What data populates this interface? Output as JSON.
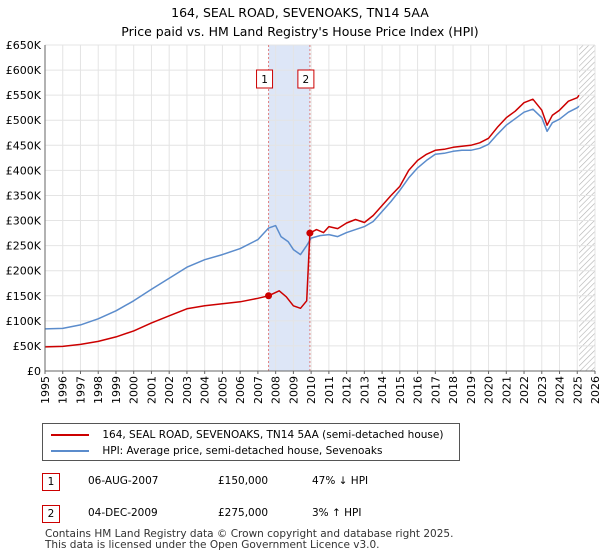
{
  "header": {
    "title": "164, SEAL ROAD, SEVENOAKS, TN14 5AA",
    "subtitle": "Price paid vs. HM Land Registry's House Price Index (HPI)"
  },
  "chart_data": {
    "type": "line",
    "title": "164, SEAL ROAD, SEVENOAKS, TN14 5AA",
    "subtitle": "Price paid vs. HM Land Registry's House Price Index (HPI)",
    "xlabel": "",
    "ylabel": "",
    "xlim": [
      1995,
      2026
    ],
    "ylim": [
      0,
      650000
    ],
    "grid": true,
    "x_ticks": [
      "1995",
      "1996",
      "1997",
      "1998",
      "1999",
      "2000",
      "2001",
      "2002",
      "2003",
      "2004",
      "2005",
      "2006",
      "2007",
      "2008",
      "2009",
      "2010",
      "2011",
      "2012",
      "2013",
      "2014",
      "2015",
      "2016",
      "2017",
      "2018",
      "2019",
      "2020",
      "2021",
      "2022",
      "2023",
      "2024",
      "2025",
      "2026"
    ],
    "y_ticks": [
      {
        "value": 0,
        "label": "£0"
      },
      {
        "value": 50000,
        "label": "£50K"
      },
      {
        "value": 100000,
        "label": "£100K"
      },
      {
        "value": 150000,
        "label": "£150K"
      },
      {
        "value": 200000,
        "label": "£200K"
      },
      {
        "value": 250000,
        "label": "£250K"
      },
      {
        "value": 300000,
        "label": "£300K"
      },
      {
        "value": 350000,
        "label": "£350K"
      },
      {
        "value": 400000,
        "label": "£400K"
      },
      {
        "value": 450000,
        "label": "£450K"
      },
      {
        "value": 500000,
        "label": "£500K"
      },
      {
        "value": 550000,
        "label": "£550K"
      },
      {
        "value": 600000,
        "label": "£600K"
      },
      {
        "value": 650000,
        "label": "£650K"
      }
    ],
    "series": [
      {
        "name": "164, SEAL ROAD, SEVENOAKS, TN14 5AA (semi-detached house)",
        "color": "#cc0000",
        "x": [
          1995.0,
          1996.0,
          1997.0,
          1998.0,
          1999.0,
          2000.0,
          2001.0,
          2002.0,
          2003.0,
          2004.0,
          2005.0,
          2006.0,
          2007.0,
          2007.6,
          2008.2,
          2008.6,
          2009.0,
          2009.4,
          2009.75,
          2009.93,
          2010.3,
          2010.7,
          2011.0,
          2011.5,
          2012.0,
          2012.5,
          2013.0,
          2013.5,
          2014.0,
          2014.5,
          2015.0,
          2015.5,
          2016.0,
          2016.5,
          2017.0,
          2017.5,
          2018.0,
          2018.5,
          2019.0,
          2019.5,
          2020.0,
          2020.5,
          2021.0,
          2021.5,
          2022.0,
          2022.5,
          2023.0,
          2023.3,
          2023.6,
          2024.0,
          2024.5,
          2025.0,
          2025.1
        ],
        "y": [
          48000,
          49000,
          53000,
          59000,
          68000,
          80000,
          96000,
          110000,
          124000,
          130000,
          134000,
          138000,
          145000,
          150000,
          160000,
          148000,
          130000,
          125000,
          140000,
          275000,
          282000,
          276000,
          288000,
          284000,
          295000,
          302000,
          296000,
          310000,
          330000,
          350000,
          368000,
          400000,
          420000,
          432000,
          440000,
          442000,
          446000,
          448000,
          450000,
          455000,
          464000,
          486000,
          505000,
          518000,
          535000,
          542000,
          520000,
          490000,
          510000,
          520000,
          538000,
          545000,
          550000
        ]
      },
      {
        "name": "HPI: Average price, semi-detached house, Sevenoaks",
        "color": "#5b8ccc",
        "x": [
          1995.0,
          1996.0,
          1997.0,
          1998.0,
          1999.0,
          2000.0,
          2001.0,
          2002.0,
          2003.0,
          2004.0,
          2005.0,
          2006.0,
          2007.0,
          2007.6,
          2008.0,
          2008.3,
          2008.7,
          2009.0,
          2009.4,
          2009.75,
          2010.0,
          2010.5,
          2011.0,
          2011.5,
          2012.0,
          2012.5,
          2013.0,
          2013.5,
          2014.0,
          2014.5,
          2015.0,
          2015.5,
          2016.0,
          2016.5,
          2017.0,
          2017.5,
          2018.0,
          2018.5,
          2019.0,
          2019.5,
          2020.0,
          2020.5,
          2021.0,
          2021.5,
          2022.0,
          2022.5,
          2023.0,
          2023.3,
          2023.6,
          2024.0,
          2024.5,
          2025.0,
          2025.1
        ],
        "y": [
          84000,
          85000,
          92000,
          104000,
          120000,
          140000,
          163000,
          185000,
          207000,
          222000,
          232000,
          244000,
          262000,
          285000,
          290000,
          268000,
          258000,
          242000,
          232000,
          250000,
          265000,
          270000,
          272000,
          268000,
          276000,
          282000,
          288000,
          298000,
          318000,
          338000,
          360000,
          385000,
          405000,
          420000,
          432000,
          434000,
          438000,
          440000,
          440000,
          444000,
          452000,
          472000,
          490000,
          503000,
          516000,
          522000,
          505000,
          478000,
          495000,
          502000,
          516000,
          525000,
          528000
        ]
      }
    ],
    "annotations": [
      {
        "label": "1",
        "x": 2007.6,
        "y": 150000,
        "color": "#cc0000"
      },
      {
        "label": "2",
        "x": 2009.93,
        "y": 275000,
        "color": "#cc0000"
      }
    ],
    "shaded_region": {
      "from": 2007.6,
      "to": 2009.93,
      "color": "#dde6f7"
    },
    "hatched_from": 2025.1,
    "legend": {
      "position": "below"
    }
  },
  "legend": {
    "property_label": "164, SEAL ROAD, SEVENOAKS, TN14 5AA (semi-detached house)",
    "hpi_label": "HPI: Average price, semi-detached house, Sevenoaks",
    "property_color": "#cc0000",
    "hpi_color": "#5b8ccc"
  },
  "transactions": [
    {
      "num": "1",
      "date": "06-AUG-2007",
      "price": "£150,000",
      "hpi": "47% ↓ HPI"
    },
    {
      "num": "2",
      "date": "04-DEC-2009",
      "price": "£275,000",
      "hpi": "3% ↑ HPI"
    }
  ],
  "footer": {
    "line1": "Contains HM Land Registry data © Crown copyright and database right 2025.",
    "line2": "This data is licensed under the Open Government Licence v3.0."
  }
}
